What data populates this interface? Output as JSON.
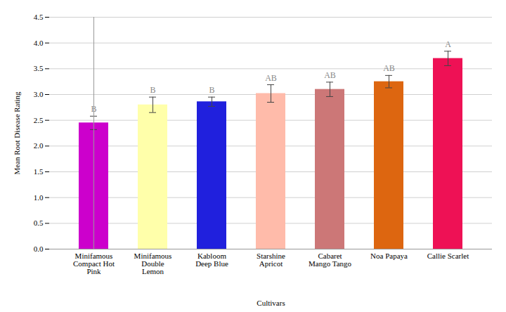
{
  "chart_data": {
    "type": "bar",
    "categories": [
      "Minifamous\nCompact Hot\nPink",
      "Minifamous\nDouble\nLemon",
      "Kabloom\nDeep Blue",
      "Starshine\nApricot",
      "Cabaret\nMango Tango",
      "Noa Papaya",
      "Callie Scarlet"
    ],
    "values": [
      2.45,
      2.8,
      2.86,
      3.02,
      3.1,
      3.25,
      3.7
    ],
    "errors": [
      0.13,
      0.15,
      0.09,
      0.17,
      0.14,
      0.12,
      0.14
    ],
    "colors": [
      "#CC00CC",
      "#FFFFAA",
      "#2020DD",
      "#FFBBAA",
      "#CC7777",
      "#DD6610",
      "#EE1155"
    ],
    "significance_labels": [
      "B",
      "B",
      "B",
      "AB",
      "AB",
      "AB",
      "A"
    ],
    "xlabel": "Cultivars",
    "ylabel": "Mean Root Disease Rating",
    "ylim": [
      0,
      4.5
    ],
    "yticks": [
      {
        "value": 0,
        "label": "0.0"
      },
      0.5,
      {
        "value": 1,
        "label": "1.0"
      },
      1.5,
      {
        "value": 2,
        "label": "2.0"
      },
      2.5,
      {
        "value": 3,
        "label": "3.0"
      },
      3.5,
      {
        "value": 4,
        "label": "4.0"
      },
      4.5
    ],
    "grid": true
  }
}
